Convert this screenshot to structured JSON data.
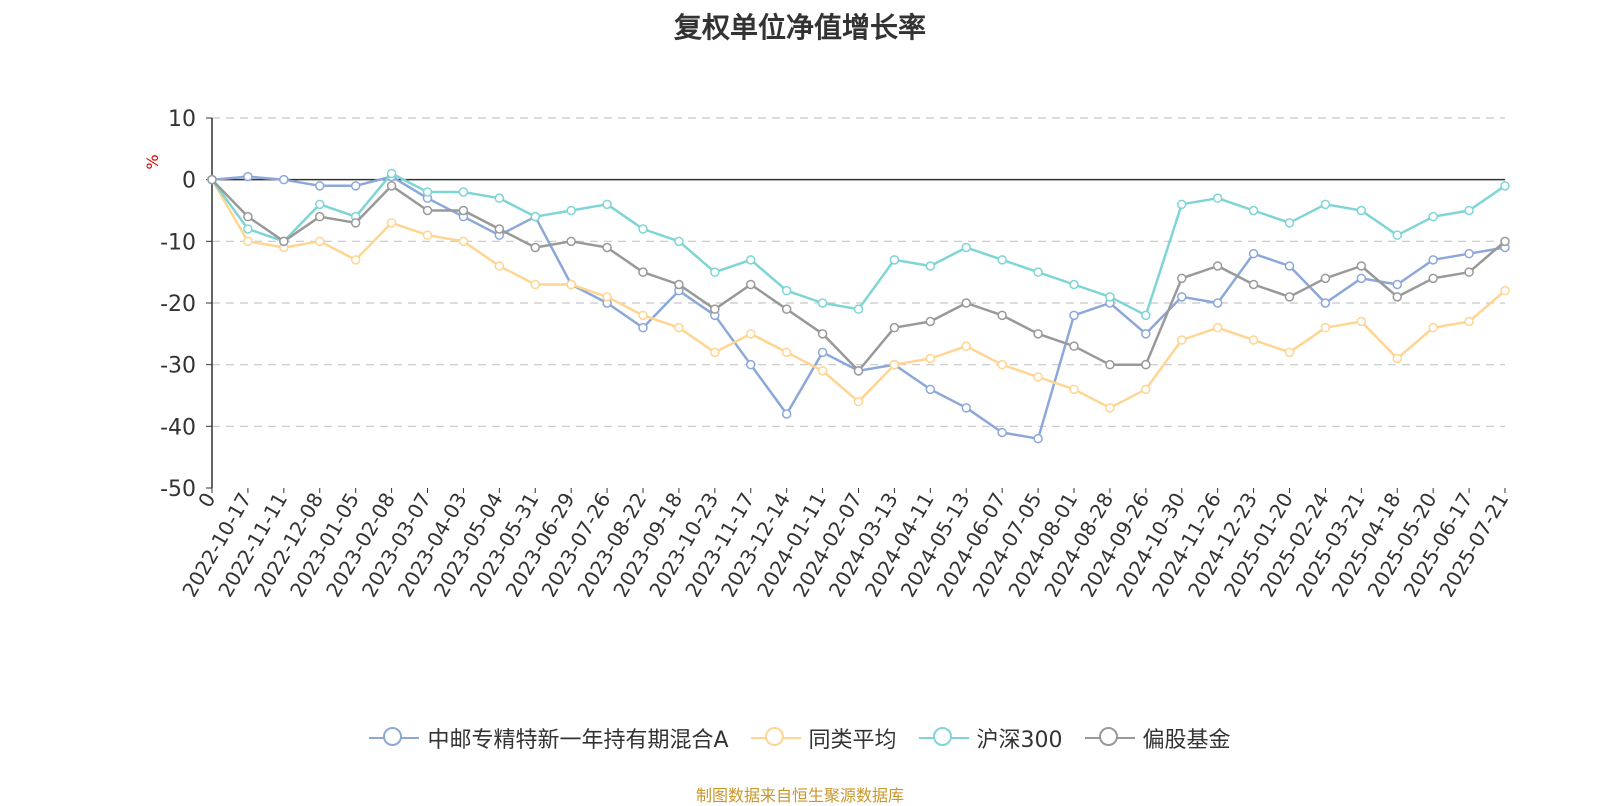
{
  "chart_data": {
    "type": "line",
    "title": "复权单位净值增长率",
    "ylabel": "%",
    "ylim": [
      -50,
      10
    ],
    "yticks": [
      10,
      0,
      -10,
      -20,
      -30,
      -40,
      -50
    ],
    "xlabels": [
      "0",
      "2022-10-17",
      "2022-11-11",
      "2022-12-08",
      "2023-01-05",
      "2023-02-08",
      "2023-03-07",
      "2023-04-03",
      "2023-05-04",
      "2023-05-31",
      "2023-06-29",
      "2023-07-26",
      "2023-08-22",
      "2023-09-18",
      "2023-10-23",
      "2023-11-17",
      "2023-12-14",
      "2024-01-11",
      "2024-02-07",
      "2024-03-13",
      "2024-04-11",
      "2024-05-13",
      "2024-06-07",
      "2024-07-05",
      "2024-08-01",
      "2024-08-28",
      "2024-09-26",
      "2024-10-30",
      "2024-11-26",
      "2024-12-23",
      "2025-01-20",
      "2025-02-24",
      "2025-03-21",
      "2025-04-18",
      "2025-05-20",
      "2025-06-17",
      "2025-07-21"
    ],
    "grid": true,
    "legend_position": "bottom",
    "series": [
      {
        "name": "中邮专精特新一年持有期混合A",
        "color": "#8ca8da",
        "values": [
          0,
          0.5,
          0,
          -1,
          -1,
          0.5,
          -3,
          -6,
          -9,
          -6,
          -17,
          -20,
          -24,
          -18,
          -22,
          -30,
          -38,
          -28,
          -31,
          -30,
          -34,
          -37,
          -41,
          -42,
          -22,
          -20,
          -25,
          -19,
          -20,
          -12,
          -14,
          -20,
          -16,
          -17,
          -13,
          -12,
          -11
        ]
      },
      {
        "name": "同类平均",
        "color": "#ffd592",
        "values": [
          0,
          -10,
          -11,
          -10,
          -13,
          -7,
          -9,
          -10,
          -14,
          -17,
          -17,
          -19,
          -22,
          -24,
          -28,
          -25,
          -28,
          -31,
          -36,
          -30,
          -29,
          -27,
          -30,
          -32,
          -34,
          -37,
          -34,
          -26,
          -24,
          -26,
          -28,
          -24,
          -23,
          -29,
          -24,
          -23,
          -18
        ]
      },
      {
        "name": "沪深300",
        "color": "#7fd5d5",
        "values": [
          0,
          -8,
          -10,
          -4,
          -6,
          1,
          -2,
          -2,
          -3,
          -6,
          -5,
          -4,
          -8,
          -10,
          -15,
          -13,
          -18,
          -20,
          -21,
          -13,
          -14,
          -11,
          -13,
          -15,
          -17,
          -19,
          -22,
          -4,
          -3,
          -5,
          -7,
          -4,
          -5,
          -9,
          -6,
          -5,
          -1
        ]
      },
      {
        "name": "偏股基金",
        "color": "#999999",
        "values": [
          0,
          -6,
          -10,
          -6,
          -7,
          -1,
          -5,
          -5,
          -8,
          -11,
          -10,
          -11,
          -15,
          -17,
          -21,
          -17,
          -21,
          -25,
          -31,
          -24,
          -23,
          -20,
          -22,
          -25,
          -27,
          -30,
          -30,
          -16,
          -14,
          -17,
          -19,
          -16,
          -14,
          -19,
          -16,
          -15,
          -10
        ]
      }
    ]
  },
  "source_text": "制图数据来自恒生聚源数据库"
}
